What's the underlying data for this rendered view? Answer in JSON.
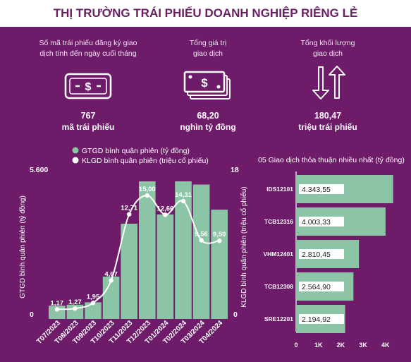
{
  "title": "THỊ TRƯỜNG TRÁI PHIẾU DOANH NGHIỆP RIÊNG LẺ",
  "stats": [
    {
      "label_line1": "Số mã trái phiếu đăng ký giao",
      "label_line2": "dịch tính đến ngày cuối tháng",
      "value": "767",
      "unit": "mã trái phiếu",
      "icon": "bond-ticket-icon"
    },
    {
      "label_line1": "Tổng giá trị",
      "label_line2": "giao dịch",
      "value": "68,20",
      "unit": "nghìn tỷ đồng",
      "icon": "banknotes-icon"
    },
    {
      "label_line1": "Tổng khối lượng",
      "label_line2": "giao dịch",
      "value": "180,47",
      "unit": "triệu trái phiếu",
      "icon": "up-down-arrows-icon"
    }
  ],
  "colors": {
    "background": "#6e1c6a",
    "title": "#6a1f66",
    "bar": "#8cc5a6",
    "line": "#ffffff"
  },
  "chart_data": [
    {
      "type": "bar",
      "legend": [
        "GTGD bình quân phiên (tỷ đồng)",
        "KLGD bình quân phiên (triệu cổ phiếu)"
      ],
      "categories": [
        "T07/2023",
        "T08/2023",
        "T09/2023",
        "T10/2023",
        "T11/2023",
        "T12/2023",
        "T01/2024",
        "T02/2024",
        "T03/2024",
        "T04/2024"
      ],
      "series": [
        {
          "name": "GTGD bình quân phiên (tỷ đồng)",
          "type": "bar",
          "axis": "left",
          "values": [
            500,
            540,
            630,
            1600,
            3600,
            5200,
            3950,
            5200,
            5080,
            4130
          ]
        },
        {
          "name": "KLGD bình quân phiên (triệu cổ phiếu)",
          "type": "line",
          "axis": "right",
          "values": [
            1.17,
            1.27,
            1.95,
            4.67,
            12.71,
            15.0,
            12.66,
            14.31,
            9.56,
            9.5
          ],
          "labels": [
            "1,17",
            "1,27",
            "1,95",
            "4,67",
            "12,71",
            "15,00",
            "12,66",
            "14,31",
            "9,56",
            "9,50"
          ]
        }
      ],
      "ylabel": "GTGD bình quân phiên (tỷ đồng)",
      "y2label": "KLGD bình quân phiên (triệu cổ phiếu)",
      "ylim": [
        0,
        5600
      ],
      "y2lim": [
        0,
        18
      ],
      "ytick_labels": [
        "0",
        "5.600"
      ],
      "y2tick_labels": [
        "0",
        "18"
      ],
      "grid": false,
      "legend_position": "top"
    },
    {
      "type": "bar",
      "orientation": "horizontal",
      "title": "05 Giao dịch thỏa thuận nhiều nhất (tỷ đồng)",
      "categories": [
        "IDS12101",
        "TCB12316",
        "VHM12401",
        "TCB12308",
        "SRE12201"
      ],
      "values": [
        4343.55,
        4003.33,
        2810.45,
        2564.9,
        2194.92
      ],
      "value_labels": [
        "4.343,55",
        "4.003,33",
        "2.810,45",
        "2.564,90",
        "2.194,92"
      ],
      "xticks": [
        0,
        1000,
        2000,
        3000,
        4000
      ],
      "xtick_labels": [
        "0",
        "1K",
        "2K",
        "3K",
        "4K"
      ],
      "grid": false
    }
  ]
}
